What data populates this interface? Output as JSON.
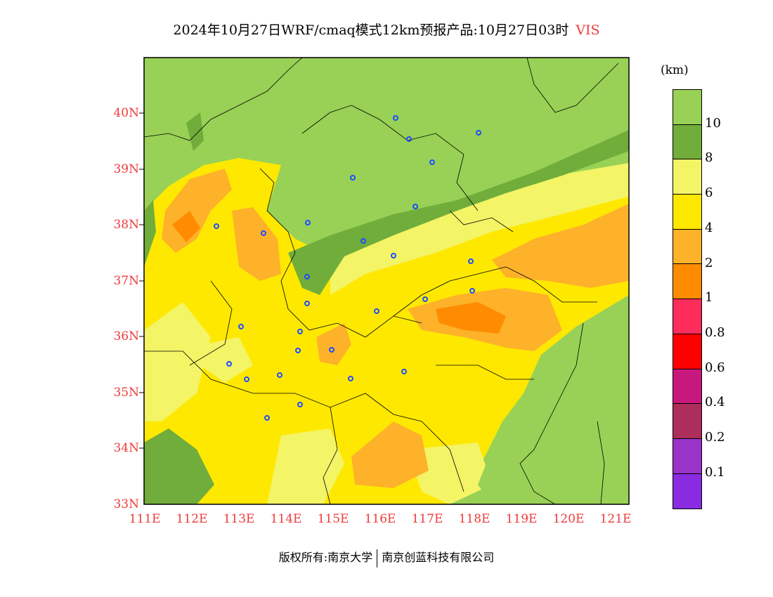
{
  "title": {
    "text": "2024年10月27日WRF/cmaq模式12km预报产品:10月27日03时",
    "variable": "VIS"
  },
  "map": {
    "lat_ticks": [
      "40N",
      "39N",
      "38N",
      "37N",
      "36N",
      "35N",
      "34N",
      "33N"
    ],
    "lon_ticks": [
      "111E",
      "112E",
      "113E",
      "114E",
      "115E",
      "116E",
      "117E",
      "118E",
      "119E",
      "120E",
      "121E"
    ],
    "extent": {
      "lon": [
        111,
        121.3
      ],
      "lat": [
        33,
        41
      ]
    }
  },
  "colorbar": {
    "unit": "(km)",
    "colors": [
      "#98d155",
      "#71ad3a",
      "#f3f466",
      "#ffe800",
      "#fdb22a",
      "#ff8c00",
      "#fe2c5a",
      "#ff0000",
      "#c9187d",
      "#ad2e5a",
      "#9a33c8",
      "#8a2be2"
    ],
    "labels": [
      "10",
      "8",
      "6",
      "4",
      "2",
      "1",
      "0.8",
      "0.6",
      "0.4",
      "0.2",
      "0.1"
    ]
  },
  "footer": {
    "left": "版权所有:南京大学",
    "right": "南京创蓝科技有限公司"
  }
}
